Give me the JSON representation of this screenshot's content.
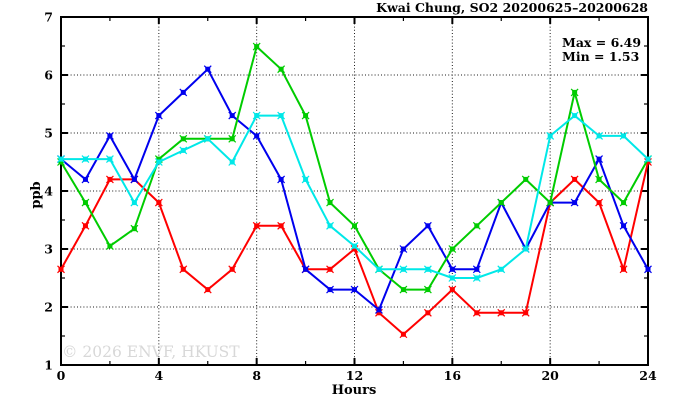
{
  "header": {
    "title": "Kwai Chung, SO2 20200625–20200628"
  },
  "annotation": {
    "max_label": "Max = 6.49",
    "min_label": "Min = 1.53"
  },
  "watermark": "© 2026 ENVF, HKUST",
  "chart_data": {
    "type": "line",
    "title": "Kwai Chung, SO2 20200625–20200628",
    "xlabel": "Hours",
    "ylabel": "ppb",
    "xlim": [
      0,
      24
    ],
    "ylim": [
      1,
      7
    ],
    "x_major_ticks": [
      0,
      4,
      8,
      12,
      16,
      20,
      24
    ],
    "x_minor_step": 2,
    "y_major_ticks": [
      1,
      2,
      3,
      4,
      5,
      6,
      7
    ],
    "y_minor_step": 0.5,
    "grid": "dotted",
    "legend": "none",
    "max_value": 6.49,
    "min_value": 1.53,
    "x": [
      0,
      1,
      2,
      3,
      4,
      5,
      6,
      7,
      8,
      9,
      10,
      11,
      12,
      13,
      14,
      15,
      16,
      17,
      18,
      19,
      20,
      21,
      22,
      23,
      24
    ],
    "series": [
      {
        "name": "red",
        "color": "#ff0000",
        "values": [
          2.65,
          3.4,
          4.2,
          4.2,
          3.8,
          2.65,
          2.3,
          2.65,
          3.4,
          3.4,
          2.65,
          2.65,
          3.0,
          1.9,
          1.53,
          1.9,
          2.3,
          1.9,
          1.9,
          1.9,
          3.8,
          4.2,
          3.8,
          2.65,
          4.5
        ]
      },
      {
        "name": "blue",
        "color": "#0000ee",
        "values": [
          4.55,
          4.2,
          4.95,
          4.2,
          5.3,
          5.7,
          6.1,
          5.3,
          4.95,
          4.2,
          2.65,
          2.3,
          2.3,
          1.95,
          3.0,
          3.4,
          2.65,
          2.65,
          3.8,
          3.0,
          3.8,
          3.8,
          4.55,
          3.4,
          2.65
        ]
      },
      {
        "name": "green",
        "color": "#00cc00",
        "values": [
          4.5,
          3.8,
          3.05,
          3.35,
          4.55,
          4.9,
          4.9,
          4.9,
          6.49,
          6.1,
          5.3,
          3.8,
          3.4,
          2.65,
          2.3,
          2.3,
          3.0,
          3.4,
          3.8,
          4.2,
          3.8,
          5.7,
          4.2,
          3.8,
          4.55
        ]
      },
      {
        "name": "cyan",
        "color": "#00e8e8",
        "values": [
          4.55,
          4.55,
          4.55,
          3.8,
          4.5,
          4.7,
          4.9,
          4.5,
          5.3,
          5.3,
          4.2,
          3.4,
          3.05,
          2.65,
          2.65,
          2.65,
          2.5,
          2.5,
          2.65,
          3.0,
          4.95,
          5.3,
          4.95,
          4.95,
          4.55
        ]
      }
    ]
  }
}
